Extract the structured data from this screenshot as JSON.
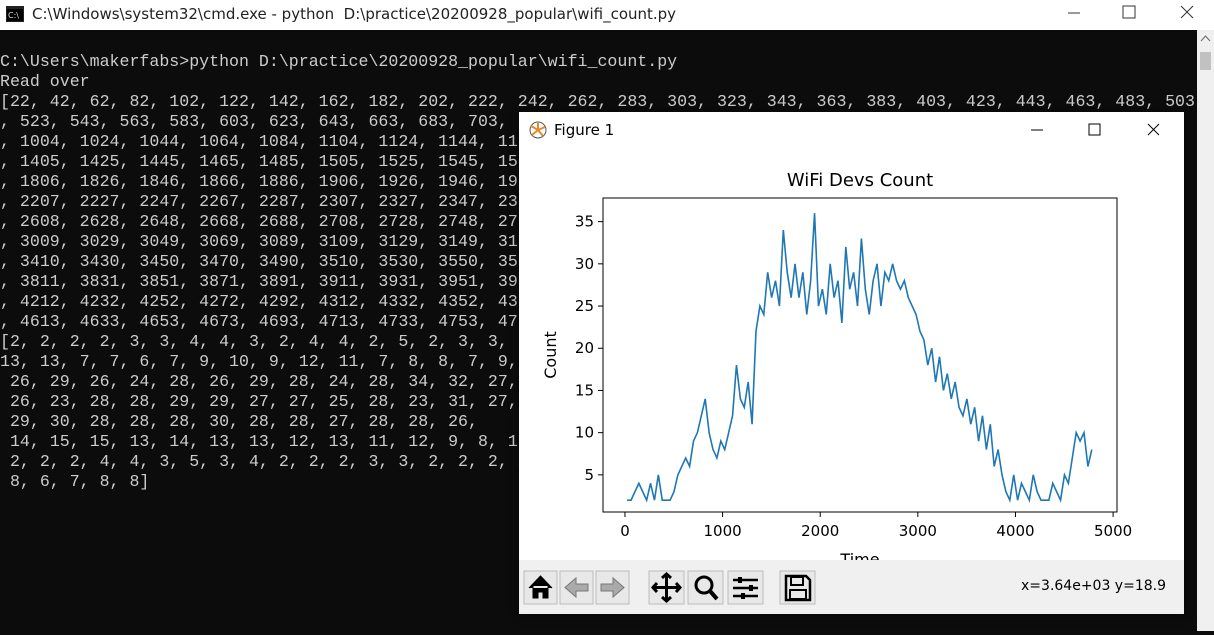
{
  "cmd_window": {
    "title": "C:\\Windows\\system32\\cmd.exe - python  D:\\practice\\20200928_popular\\wifi_count.py",
    "lines": [
      "C:\\Users\\makerfabs>python D:\\practice\\20200928_popular\\wifi_count.py",
      "Read over",
      "[22, 42, 62, 82, 102, 122, 142, 162, 182, 202, 222, 242, 262, 283, 303, 323, 343, 363, 383, 403, 423, 443, 463, 483, 503",
      ", 523, 543, 563, 583, 603, 623, 643, 663, 683, 703,",
      ", 1004, 1024, 1044, 1064, 1084, 1104, 1124, 1144, 11",
      ", 1405, 1425, 1445, 1465, 1485, 1505, 1525, 1545, 15",
      ", 1806, 1826, 1846, 1866, 1886, 1906, 1926, 1946, 19",
      ", 2207, 2227, 2247, 2267, 2287, 2307, 2327, 2347, 23",
      ", 2608, 2628, 2648, 2668, 2688, 2708, 2728, 2748, 27",
      ", 3009, 3029, 3049, 3069, 3089, 3109, 3129, 3149, 31",
      ", 3410, 3430, 3450, 3470, 3490, 3510, 3530, 3550, 35",
      ", 3811, 3831, 3851, 3871, 3891, 3911, 3931, 3951, 39",
      ", 4212, 4232, 4252, 4272, 4292, 4312, 4332, 4352, 43",
      ", 4613, 4633, 4653, 4673, 4693, 4713, 4733, 4753, 47",
      "[2, 2, 2, 2, 3, 3, 4, 4, 3, 2, 4, 4, 2, 5, 2, 3, 3,",
      "13, 13, 7, 7, 6, 7, 9, 10, 9, 12, 11, 7, 8, 8, 7, 9,",
      " 26, 29, 26, 24, 28, 26, 29, 28, 24, 28, 34, 32, 27,",
      " 26, 23, 28, 28, 29, 29, 27, 27, 25, 28, 23, 31, 27,",
      " 29, 30, 28, 28, 28, 30, 28, 28, 27, 28, 28, 26,",
      " 14, 15, 15, 13, 14, 13, 13, 12, 13, 11, 12, 9, 8, 1",
      " 2, 2, 2, 4, 4, 3, 5, 3, 4, 2, 2, 2, 3, 3, 2, 2, 2, 2,",
      " 8, 6, 7, 8, 8]"
    ]
  },
  "figure_window": {
    "title": "Figure 1",
    "status": "x=3.64e+03 y=18.9"
  },
  "chart_data": {
    "type": "line",
    "title": "WiFi Devs Count",
    "x_label": "Time",
    "y_label": "Count",
    "color": "#1f77b4",
    "x": [
      22,
      62,
      102,
      142,
      182,
      222,
      262,
      302,
      342,
      382,
      422,
      462,
      502,
      542,
      582,
      622,
      662,
      702,
      742,
      782,
      822,
      862,
      902,
      942,
      982,
      1022,
      1062,
      1102,
      1142,
      1182,
      1222,
      1262,
      1302,
      1342,
      1382,
      1422,
      1462,
      1502,
      1542,
      1582,
      1622,
      1662,
      1702,
      1742,
      1782,
      1822,
      1862,
      1902,
      1942,
      1982,
      2022,
      2062,
      2102,
      2142,
      2182,
      2222,
      2262,
      2302,
      2342,
      2382,
      2422,
      2462,
      2502,
      2542,
      2582,
      2622,
      2662,
      2702,
      2742,
      2782,
      2822,
      2862,
      2902,
      2942,
      2982,
      3022,
      3062,
      3102,
      3142,
      3182,
      3222,
      3262,
      3302,
      3342,
      3382,
      3422,
      3462,
      3502,
      3542,
      3582,
      3622,
      3662,
      3702,
      3742,
      3782,
      3822,
      3862,
      3902,
      3942,
      3982,
      4022,
      4062,
      4102,
      4142,
      4182,
      4222,
      4262,
      4302,
      4342,
      4382,
      4422,
      4462,
      4502,
      4542,
      4582,
      4622,
      4662,
      4702,
      4742,
      4782
    ],
    "values": [
      2,
      2,
      3,
      4,
      3,
      2,
      4,
      2,
      5,
      2,
      2,
      2,
      3,
      5,
      6,
      7,
      6,
      9,
      10,
      12,
      14,
      10,
      8,
      7,
      9,
      8,
      10,
      12,
      18,
      14,
      13,
      16,
      11,
      22,
      25,
      24,
      29,
      26,
      28,
      25,
      34,
      29,
      26,
      30,
      26,
      29,
      24,
      28,
      36,
      25,
      27,
      24,
      30,
      26,
      28,
      23,
      32,
      27,
      29,
      25,
      33,
      27,
      24,
      28,
      30,
      25,
      29,
      28,
      30,
      28,
      27,
      28,
      26,
      25,
      24,
      22,
      21,
      18,
      20,
      16,
      19,
      15,
      17,
      14,
      16,
      13,
      12,
      14,
      11,
      13,
      9,
      12,
      8,
      11,
      6,
      8,
      5,
      3,
      2,
      5,
      2,
      4,
      3,
      2,
      5,
      3,
      2,
      2,
      2,
      4,
      3,
      2,
      5,
      4,
      7,
      10,
      9,
      10,
      6,
      8
    ],
    "xlim": [
      -225,
      5040
    ],
    "ylim": [
      0.6,
      37.8
    ],
    "xticks": [
      0,
      1000,
      2000,
      3000,
      4000,
      5000
    ],
    "yticks": [
      5,
      10,
      15,
      20,
      25,
      30,
      35
    ]
  }
}
